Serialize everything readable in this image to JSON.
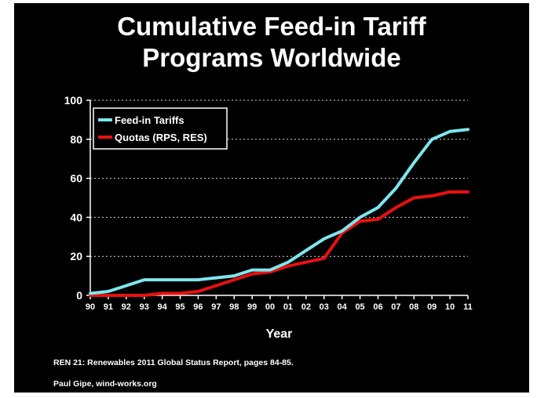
{
  "title_line1": "Cumulative Feed-in Tariff",
  "title_line2": "Programs Worldwide",
  "source_line1": "REN 21: Renewables 2011 Global Status Report, pages 84-85.",
  "source_line2": "Paul Gipe, wind-works.org",
  "colors": {
    "background": "#000000",
    "feed_in": "#7fe6ee",
    "quotas": "#e81010",
    "text": "#ffffff",
    "grid": "#ffffff"
  },
  "chart_data": {
    "type": "line",
    "title": "Cumulative Feed-in Tariff Programs Worldwide",
    "xlabel": "Year",
    "ylabel": "",
    "x": [
      "90",
      "91",
      "92",
      "93",
      "94",
      "95",
      "96",
      "97",
      "98",
      "99",
      "00",
      "01",
      "02",
      "03",
      "04",
      "05",
      "06",
      "07",
      "08",
      "09",
      "10",
      "11"
    ],
    "ylim": [
      0,
      100
    ],
    "yticks": [
      0,
      20,
      40,
      60,
      80,
      100
    ],
    "grid": "horizontal dashed",
    "legend": "top-left",
    "series": [
      {
        "name": "Feed-in Tariffs",
        "color": "#7fe6ee",
        "values": [
          1,
          2,
          5,
          8,
          8,
          8,
          8,
          9,
          10,
          13,
          13,
          17,
          23,
          29,
          33,
          40,
          45,
          55,
          68,
          80,
          84,
          85
        ]
      },
      {
        "name": "Quotas (RPS, RES)",
        "color": "#e81010",
        "values": [
          0,
          0,
          0,
          0,
          1,
          1,
          2,
          5,
          8,
          11,
          12,
          15,
          17,
          19,
          32,
          38,
          39,
          45,
          50,
          51,
          53,
          53
        ]
      }
    ]
  }
}
